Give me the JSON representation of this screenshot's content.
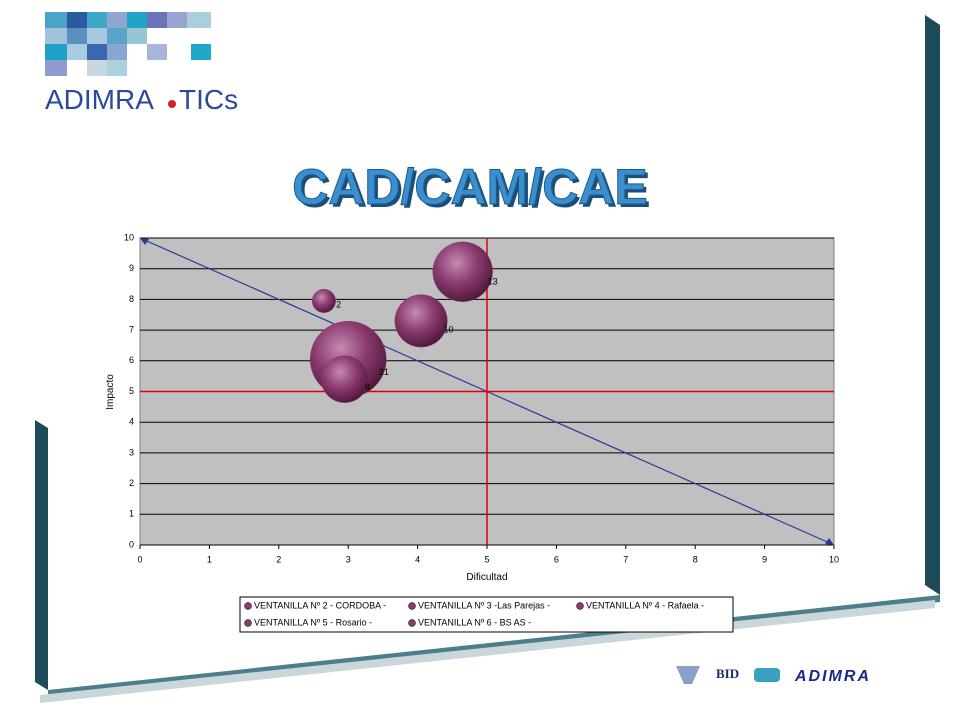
{
  "logo": {
    "left": "ADIMRA",
    "right": "TICs"
  },
  "footer": {
    "bid": "BID",
    "adimra": "ADIMRA"
  },
  "chart_data": {
    "type": "bubble",
    "title": "CAD/CAM/CAE",
    "x_label": "Dificultad",
    "y_label": "Impacto",
    "xlim": [
      0,
      10
    ],
    "ylim": [
      0,
      10
    ],
    "xticks": [
      0,
      1,
      2,
      3,
      4,
      5,
      6,
      7,
      8,
      9,
      10
    ],
    "yticks": [
      0,
      1,
      2,
      3,
      4,
      5,
      6,
      7,
      8,
      9,
      10
    ],
    "grid": true,
    "hline": 5,
    "vline": 5,
    "diagonal": {
      "x": [
        0,
        10
      ],
      "y": [
        10,
        0
      ]
    },
    "series": [
      {
        "name": "VENTANILLA Nº 2 - CORDOBA -",
        "color": "#8b3a70",
        "x": [
          2.65
        ],
        "values": [
          7.95
        ],
        "sizes": [
          2
        ]
      },
      {
        "name": "VENTANILLA Nº 3 -Las Parejas -",
        "color": "#8b3a70",
        "x": [
          4.65
        ],
        "values": [
          8.9
        ],
        "sizes": [
          13
        ]
      },
      {
        "name": "VENTANILLA Nº 4 - Rafaela -",
        "color": "#8b3a70",
        "x": [
          4.05
        ],
        "values": [
          7.3
        ],
        "sizes": [
          10
        ]
      },
      {
        "name": "VENTANILLA Nº 5 - Rosario -",
        "color": "#8b3a70",
        "x": [
          2.95
        ],
        "values": [
          5.4
        ],
        "sizes": [
          8
        ]
      },
      {
        "name": "VENTANILLA Nº 6 - BS AS -",
        "color": "#8b3a70",
        "x": [
          3.0
        ],
        "values": [
          6.05
        ],
        "sizes": [
          21
        ]
      }
    ]
  }
}
